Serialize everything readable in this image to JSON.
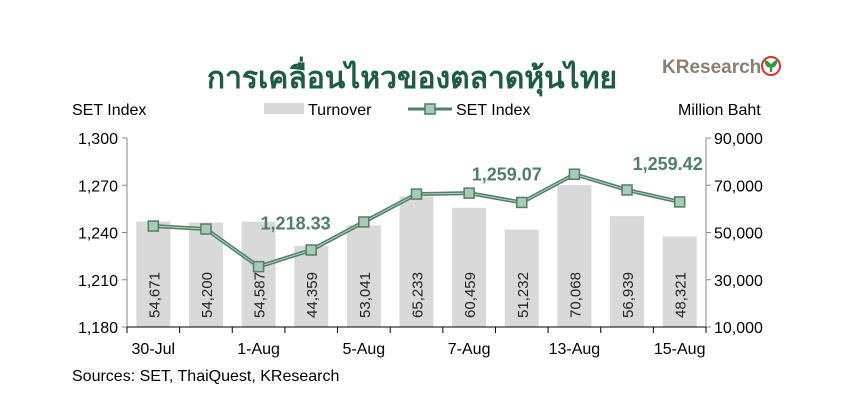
{
  "chart_data": {
    "type": "bar+line",
    "title": "การเคลื่อนไหวของตลาดหุ้นไทย",
    "logo_text": "KResearch",
    "ylabel_left": "SET Index",
    "ylabel_right": "Million Baht",
    "source": "Sources: SET, ThaiQuest, KResearch",
    "legend": [
      "Turnover",
      "SET Index"
    ],
    "legend_placement": "top",
    "x_tick_labels": [
      "30-Jul",
      "",
      "1-Aug",
      "",
      "5-Aug",
      "",
      "7-Aug",
      "",
      "13-Aug",
      "",
      "15-Aug"
    ],
    "ylim_left": [
      1180,
      1300
    ],
    "yticks_left": [
      "1,180",
      "1,210",
      "1,240",
      "1,270",
      "1,300"
    ],
    "ylim_right": [
      10000,
      90000
    ],
    "yticks_right": [
      "10,000",
      "30,000",
      "50,000",
      "70,000",
      "90,000"
    ],
    "grid": false,
    "series": [
      {
        "name": "Turnover",
        "type": "bar",
        "color": "#d9d9d9",
        "values": [
          54671,
          54200,
          54587,
          44359,
          53041,
          65233,
          60459,
          51232,
          70068,
          56939,
          48321
        ],
        "labels": [
          "54,671",
          "54,200",
          "54,587",
          "44,359",
          "53,041",
          "65,233",
          "60,459",
          "51,232",
          "70,068",
          "56,939",
          "48,321"
        ]
      },
      {
        "name": "SET Index",
        "type": "line",
        "color": "#4f7f68",
        "marker_fill": "#a8cbb8",
        "values": [
          1244.1,
          1242.2,
          1218.33,
          1228.9,
          1246.7,
          1264.4,
          1265.0,
          1259.07,
          1277.0,
          1267.0,
          1259.42
        ]
      }
    ],
    "annotations": [
      {
        "text": "1,218.33",
        "index": 2
      },
      {
        "text": "1,259.07",
        "index": 7
      },
      {
        "text": "1,259.42",
        "index": 10
      }
    ]
  }
}
